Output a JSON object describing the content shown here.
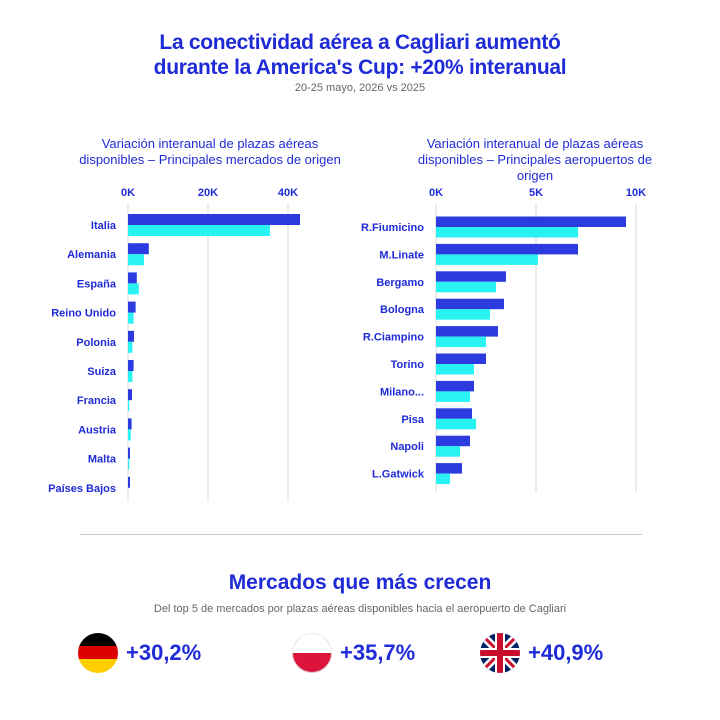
{
  "header": {
    "title_line1": "La conectividad aérea a Cagliari aumentó",
    "title_line2": "durante la America's Cup: +20% interanual",
    "subtitle": "20-25 mayo, 2026 vs 2025"
  },
  "colors": {
    "accent": "#1f2bd6",
    "bar_primary": "#2b3be0",
    "bar_secondary": "#29f2f2",
    "grid": "#d9d9d9"
  },
  "chart_data": [
    {
      "type": "bar",
      "orientation": "horizontal",
      "title_line1": "Variación interanual de plazas aéreas",
      "title_line2": "disponibles – Principales mercados de origen",
      "title_line3": "",
      "xlim": [
        0,
        40000
      ],
      "x_ticks": [
        0,
        20000,
        40000
      ],
      "x_tick_labels": [
        "0K",
        "20K",
        "40K"
      ],
      "grid": true,
      "categories": [
        "Italia",
        "Alemania",
        "España",
        "Reino Unido",
        "Polonia",
        "Suiza",
        "Francia",
        "Austria",
        "Malta",
        "Países Bajos"
      ],
      "series": [
        {
          "values": [
            43000,
            5200,
            2200,
            1900,
            1500,
            1400,
            1000,
            900,
            500,
            500
          ]
        },
        {
          "values": [
            35500,
            4000,
            2700,
            1400,
            1100,
            1100,
            300,
            700,
            300,
            0
          ]
        }
      ]
    },
    {
      "type": "bar",
      "orientation": "horizontal",
      "title_line1": "Variación interanual de plazas aéreas",
      "title_line2": "disponibles – Principales aeropuertos de",
      "title_line3": "origen",
      "xlim": [
        0,
        10000
      ],
      "x_ticks": [
        0,
        5000,
        10000
      ],
      "x_tick_labels": [
        "0K",
        "5K",
        "10K"
      ],
      "grid": true,
      "categories": [
        "R.Fiumicino",
        "M.Linate",
        "Bergamo",
        "Bologna",
        "R.Ciampino",
        "Torino",
        "Milano...",
        "Pisa",
        "Napoli",
        "L.Gatwick"
      ],
      "series": [
        {
          "values": [
            9500,
            7100,
            3500,
            3400,
            3100,
            2500,
            1900,
            1800,
            1700,
            1300
          ]
        },
        {
          "values": [
            7100,
            5100,
            3000,
            2700,
            2500,
            1900,
            1700,
            2000,
            1200,
            700
          ]
        }
      ]
    }
  ],
  "growth": {
    "title": "Mercados que más crecen",
    "subtitle": "Del top 5 de mercados por plazas aéreas disponibles hacia el aeropuerto de Cagliari",
    "items": [
      {
        "flag": "germany-flag-icon",
        "value": "+30,2%"
      },
      {
        "flag": "poland-flag-icon",
        "value": "+35,7%"
      },
      {
        "flag": "uk-flag-icon",
        "value": "+40,9%"
      }
    ]
  }
}
